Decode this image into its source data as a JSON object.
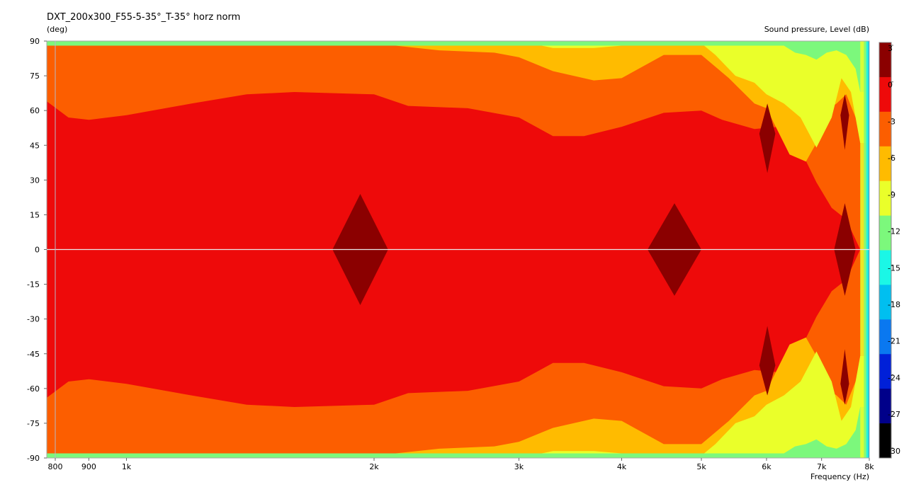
{
  "chart_data": {
    "type": "heatmap",
    "title": "DXT_200x300_F55-5-35°_T-35° horz norm",
    "ylabel": "(deg)",
    "xlabel": "Frequency  (Hz)",
    "colorbar_label": "Sound pressure, Level  (dB)",
    "x_scale": "log",
    "xlim": [
      800,
      8000
    ],
    "ylim": [
      -90,
      90
    ],
    "x_ticks": [
      {
        "value": 800,
        "label": "800"
      },
      {
        "value": 900,
        "label": "900"
      },
      {
        "value": 1000,
        "label": "1k"
      },
      {
        "value": 2000,
        "label": "2k"
      },
      {
        "value": 3000,
        "label": "3k"
      },
      {
        "value": 4000,
        "label": "4k"
      },
      {
        "value": 5000,
        "label": "5k"
      },
      {
        "value": 6000,
        "label": "6k"
      },
      {
        "value": 7000,
        "label": "7k"
      },
      {
        "value": 8000,
        "label": "8k"
      }
    ],
    "y_ticks": [
      "90",
      "75",
      "60",
      "45",
      "30",
      "15",
      "0",
      "-15",
      "-30",
      "-45",
      "-60",
      "-75",
      "-90"
    ],
    "colorbar_ticks": [
      "3",
      "0",
      "-3",
      "-6",
      "-9",
      "-12",
      "-15",
      "-18",
      "-21",
      "-24",
      "-27",
      "-30"
    ],
    "colorbar_levels": [
      {
        "from": 0,
        "to": 3,
        "color": "#8b0000"
      },
      {
        "from": -3,
        "to": 0,
        "color": "#ee0a0a"
      },
      {
        "from": -6,
        "to": -3,
        "color": "#fc5e00"
      },
      {
        "from": -9,
        "to": -6,
        "color": "#ffbb00"
      },
      {
        "from": -12,
        "to": -9,
        "color": "#eaff2a"
      },
      {
        "from": -15,
        "to": -12,
        "color": "#7cf87c"
      },
      {
        "from": -18,
        "to": -15,
        "color": "#1bf7e6"
      },
      {
        "from": -21,
        "to": -18,
        "color": "#00bff0"
      },
      {
        "from": -24,
        "to": -21,
        "color": "#0a78f0"
      },
      {
        "from": -27,
        "to": -24,
        "color": "#0020d8"
      },
      {
        "from": -30,
        "to": -27,
        "color": "#00008a"
      },
      {
        "from": -33,
        "to": -30,
        "color": "#000000"
      }
    ],
    "contours_upper_half": [
      {
        "level": "-3",
        "points": [
          [
            800,
            64
          ],
          [
            850,
            57
          ],
          [
            900,
            56
          ],
          [
            1000,
            58
          ],
          [
            1200,
            63
          ],
          [
            1400,
            67
          ],
          [
            1600,
            68
          ],
          [
            2000,
            67
          ],
          [
            2200,
            62
          ],
          [
            2600,
            61
          ],
          [
            3000,
            57
          ],
          [
            3300,
            49
          ],
          [
            3600,
            49
          ],
          [
            4000,
            53
          ],
          [
            4500,
            59
          ],
          [
            5000,
            60
          ],
          [
            5300,
            56
          ],
          [
            5800,
            52
          ],
          [
            6200,
            53
          ],
          [
            6600,
            43
          ],
          [
            6900,
            29
          ],
          [
            7200,
            18
          ],
          [
            7500,
            13
          ],
          [
            7800,
            0
          ]
        ]
      },
      {
        "level": "-6",
        "points": [
          [
            800,
            90
          ],
          [
            1000,
            91
          ],
          [
            1300,
            90
          ],
          [
            1700,
            89
          ],
          [
            2000,
            89
          ],
          [
            2400,
            86
          ],
          [
            2800,
            85
          ],
          [
            3000,
            83
          ],
          [
            3300,
            77
          ],
          [
            3700,
            73
          ],
          [
            4000,
            74
          ],
          [
            4500,
            84
          ],
          [
            5000,
            84
          ],
          [
            5400,
            74
          ],
          [
            5800,
            63
          ],
          [
            6000,
            61
          ],
          [
            6400,
            41
          ],
          [
            6700,
            38
          ],
          [
            6900,
            46
          ],
          [
            7100,
            60
          ],
          [
            7300,
            63
          ],
          [
            7500,
            67
          ],
          [
            7800,
            52
          ]
        ]
      },
      {
        "level": "-9",
        "points": [
          [
            800,
            90
          ],
          [
            2000,
            90
          ],
          [
            3000,
            90
          ],
          [
            3300,
            87
          ],
          [
            3700,
            87
          ],
          [
            4000,
            88
          ],
          [
            4500,
            88
          ],
          [
            5000,
            89
          ],
          [
            5200,
            84
          ],
          [
            5500,
            75
          ],
          [
            5800,
            72
          ],
          [
            6000,
            67
          ],
          [
            6300,
            63
          ],
          [
            6600,
            57
          ],
          [
            6900,
            44
          ],
          [
            7200,
            57
          ],
          [
            7400,
            74
          ],
          [
            7600,
            68
          ],
          [
            7800,
            46
          ]
        ]
      },
      {
        "level": "-12",
        "points": [
          [
            6300,
            88
          ],
          [
            6500,
            85
          ],
          [
            6700,
            84
          ],
          [
            6900,
            82
          ],
          [
            7100,
            85
          ],
          [
            7300,
            86
          ],
          [
            7500,
            84
          ],
          [
            7700,
            78
          ],
          [
            7800,
            68
          ]
        ]
      }
    ],
    "hotspots": [
      {
        "level": "0",
        "center": [
          1920,
          0
        ],
        "span_freq": [
          1780,
          2080
        ],
        "span_deg": [
          -24,
          24
        ]
      },
      {
        "level": "0",
        "center": [
          4550,
          0
        ],
        "span_freq": [
          4300,
          5000
        ],
        "span_deg": [
          -20,
          20
        ]
      },
      {
        "level": "0",
        "center": [
          6000,
          50
        ],
        "span_freq": [
          5880,
          6150
        ],
        "span_deg": [
          33,
          63
        ]
      },
      {
        "level": "0",
        "center": [
          6000,
          -50
        ],
        "span_freq": [
          5880,
          6150
        ],
        "span_deg": [
          -63,
          -33
        ]
      },
      {
        "level": "0",
        "center": [
          7420,
          0
        ],
        "span_freq": [
          7250,
          7700
        ],
        "span_deg": [
          -20,
          20
        ]
      },
      {
        "level": "0",
        "center": [
          7450,
          58
        ],
        "span_freq": [
          7380,
          7560
        ],
        "span_deg": [
          43,
          67
        ]
      },
      {
        "level": "0",
        "center": [
          7450,
          -58
        ],
        "span_freq": [
          7380,
          7560
        ],
        "span_deg": [
          -67,
          -43
        ]
      }
    ],
    "grid": true,
    "legend": "right"
  }
}
